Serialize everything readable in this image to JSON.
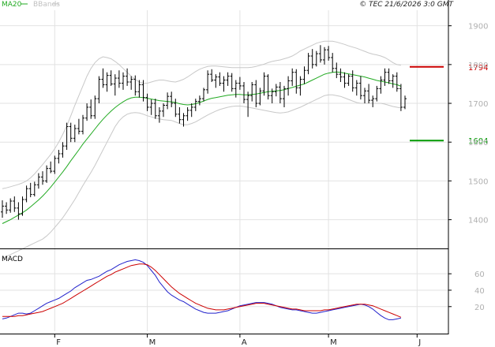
{
  "copyright": "© TEC 21/6/2026 3:0 GMT",
  "chart_data": [
    {
      "type": "ohlc",
      "legend": [
        {
          "name": "MA20",
          "color": "#22aa22"
        },
        {
          "name": "BBands",
          "color": "#c0c0c0"
        }
      ],
      "x_ticks": [
        {
          "label": "F",
          "bar": 13
        },
        {
          "label": "M",
          "bar": 36
        },
        {
          "label": "A",
          "bar": 59
        },
        {
          "label": "M",
          "bar": 81
        },
        {
          "label": "J",
          "bar": 103
        }
      ],
      "y_ticks": [
        1400,
        1500,
        1600,
        1700,
        1800,
        1900
      ],
      "ylim": [
        1330,
        1940
      ],
      "grid": true,
      "levels": [
        {
          "label": "1794",
          "value": 1794,
          "color": "#cc0000"
        },
        {
          "label": "1604",
          "value": 1604,
          "color": "#009900"
        }
      ],
      "bars": [
        [
          1420,
          1450,
          1405,
          1435
        ],
        [
          1435,
          1445,
          1415,
          1425
        ],
        [
          1425,
          1455,
          1418,
          1448
        ],
        [
          1448,
          1460,
          1420,
          1430
        ],
        [
          1430,
          1445,
          1400,
          1415
        ],
        [
          1415,
          1460,
          1410,
          1452
        ],
        [
          1452,
          1488,
          1445,
          1480
        ],
        [
          1480,
          1495,
          1458,
          1465
        ],
        [
          1465,
          1498,
          1460,
          1490
        ],
        [
          1490,
          1520,
          1480,
          1510
        ],
        [
          1510,
          1525,
          1490,
          1500
        ],
        [
          1500,
          1540,
          1495,
          1532
        ],
        [
          1532,
          1550,
          1520,
          1525
        ],
        [
          1525,
          1565,
          1518,
          1558
        ],
        [
          1558,
          1580,
          1545,
          1570
        ],
        [
          1570,
          1600,
          1560,
          1590
        ],
        [
          1590,
          1650,
          1580,
          1640
        ],
        [
          1640,
          1650,
          1600,
          1610
        ],
        [
          1610,
          1645,
          1600,
          1635
        ],
        [
          1635,
          1660,
          1620,
          1628
        ],
        [
          1628,
          1670,
          1620,
          1662
        ],
        [
          1662,
          1700,
          1655,
          1690
        ],
        [
          1690,
          1710,
          1660,
          1668
        ],
        [
          1668,
          1720,
          1660,
          1712
        ],
        [
          1712,
          1770,
          1700,
          1762
        ],
        [
          1762,
          1790,
          1740,
          1748
        ],
        [
          1748,
          1780,
          1730,
          1772
        ],
        [
          1772,
          1785,
          1745,
          1750
        ],
        [
          1750,
          1775,
          1720,
          1765
        ],
        [
          1765,
          1785,
          1740,
          1752
        ],
        [
          1752,
          1780,
          1735,
          1770
        ],
        [
          1770,
          1790,
          1745,
          1755
        ],
        [
          1755,
          1770,
          1735,
          1762
        ],
        [
          1762,
          1772,
          1720,
          1730
        ],
        [
          1730,
          1760,
          1715,
          1748
        ],
        [
          1748,
          1760,
          1705,
          1715
        ],
        [
          1715,
          1725,
          1680,
          1690
        ],
        [
          1690,
          1710,
          1670,
          1700
        ],
        [
          1700,
          1712,
          1660,
          1668
        ],
        [
          1668,
          1690,
          1650,
          1680
        ],
        [
          1680,
          1700,
          1665,
          1695
        ],
        [
          1695,
          1728,
          1685,
          1718
        ],
        [
          1718,
          1730,
          1690,
          1700
        ],
        [
          1700,
          1712,
          1665,
          1672
        ],
        [
          1672,
          1690,
          1648,
          1658
        ],
        [
          1658,
          1675,
          1640,
          1668
        ],
        [
          1668,
          1690,
          1655,
          1682
        ],
        [
          1682,
          1700,
          1665,
          1690
        ],
        [
          1690,
          1712,
          1680,
          1705
        ],
        [
          1705,
          1720,
          1695,
          1712
        ],
        [
          1712,
          1740,
          1705,
          1735
        ],
        [
          1735,
          1785,
          1725,
          1775
        ],
        [
          1775,
          1788,
          1755,
          1760
        ],
        [
          1760,
          1775,
          1740,
          1768
        ],
        [
          1768,
          1780,
          1745,
          1752
        ],
        [
          1752,
          1770,
          1730,
          1760
        ],
        [
          1760,
          1780,
          1745,
          1770
        ],
        [
          1770,
          1778,
          1730,
          1738
        ],
        [
          1738,
          1760,
          1715,
          1752
        ],
        [
          1752,
          1768,
          1735,
          1745
        ],
        [
          1745,
          1755,
          1700,
          1710
        ],
        [
          1710,
          1730,
          1665,
          1720
        ],
        [
          1720,
          1755,
          1705,
          1748
        ],
        [
          1748,
          1760,
          1690,
          1700
        ],
        [
          1700,
          1740,
          1695,
          1732
        ],
        [
          1732,
          1780,
          1720,
          1770
        ],
        [
          1770,
          1775,
          1710,
          1720
        ],
        [
          1720,
          1738,
          1700,
          1730
        ],
        [
          1730,
          1750,
          1718,
          1742
        ],
        [
          1742,
          1755,
          1700,
          1712
        ],
        [
          1712,
          1745,
          1690,
          1738
        ],
        [
          1738,
          1770,
          1720,
          1758
        ],
        [
          1758,
          1790,
          1745,
          1780
        ],
        [
          1780,
          1788,
          1725,
          1740
        ],
        [
          1740,
          1770,
          1720,
          1762
        ],
        [
          1762,
          1795,
          1750,
          1785
        ],
        [
          1785,
          1830,
          1775,
          1822
        ],
        [
          1822,
          1840,
          1790,
          1800
        ],
        [
          1800,
          1835,
          1795,
          1828
        ],
        [
          1828,
          1850,
          1805,
          1812
        ],
        [
          1812,
          1845,
          1800,
          1838
        ],
        [
          1838,
          1848,
          1810,
          1818
        ],
        [
          1818,
          1830,
          1780,
          1790
        ],
        [
          1790,
          1805,
          1765,
          1775
        ],
        [
          1775,
          1790,
          1755,
          1768
        ],
        [
          1768,
          1780,
          1740,
          1752
        ],
        [
          1752,
          1775,
          1745,
          1770
        ],
        [
          1770,
          1785,
          1730,
          1740
        ],
        [
          1740,
          1760,
          1720,
          1752
        ],
        [
          1752,
          1770,
          1710,
          1720
        ],
        [
          1720,
          1740,
          1700,
          1732
        ],
        [
          1732,
          1750,
          1700,
          1708
        ],
        [
          1708,
          1720,
          1690,
          1712
        ],
        [
          1712,
          1745,
          1705,
          1738
        ],
        [
          1738,
          1770,
          1725,
          1760
        ],
        [
          1760,
          1790,
          1745,
          1780
        ],
        [
          1780,
          1790,
          1750,
          1758
        ],
        [
          1758,
          1775,
          1740,
          1770
        ],
        [
          1770,
          1780,
          1730,
          1738
        ],
        [
          1738,
          1750,
          1680,
          1690
        ],
        [
          1690,
          1720,
          1685,
          1712
        ]
      ],
      "ma20": [
        1390,
        1395,
        1400,
        1406,
        1412,
        1418,
        1425,
        1433,
        1442,
        1451,
        1461,
        1472,
        1484,
        1497,
        1510,
        1523,
        1537,
        1552,
        1566,
        1580,
        1595,
        1608,
        1621,
        1634,
        1647,
        1659,
        1670,
        1680,
        1689,
        1697,
        1704,
        1710,
        1714,
        1716,
        1716,
        1715,
        1713,
        1711,
        1709,
        1707,
        1706,
        1705,
        1704,
        1702,
        1699,
        1697,
        1696,
        1697,
        1699,
        1702,
        1706,
        1710,
        1713,
        1715,
        1717,
        1719,
        1721,
        1722,
        1723,
        1723,
        1722,
        1722,
        1723,
        1724,
        1726,
        1728,
        1730,
        1731,
        1732,
        1733,
        1735,
        1738,
        1741,
        1744,
        1747,
        1750,
        1755,
        1760,
        1765,
        1770,
        1775,
        1778,
        1780,
        1781,
        1780,
        1778,
        1776,
        1774,
        1772,
        1770,
        1768,
        1765,
        1762,
        1759,
        1757,
        1755,
        1753,
        1750,
        1748,
        1744
      ],
      "bb_upper": [
        1480,
        1482,
        1485,
        1488,
        1491,
        1495,
        1500,
        1508,
        1518,
        1530,
        1542,
        1555,
        1568,
        1583,
        1600,
        1620,
        1642,
        1668,
        1695,
        1720,
        1745,
        1770,
        1790,
        1805,
        1815,
        1820,
        1818,
        1815,
        1808,
        1800,
        1790,
        1780,
        1770,
        1762,
        1755,
        1752,
        1752,
        1755,
        1758,
        1760,
        1760,
        1758,
        1756,
        1755,
        1758,
        1762,
        1768,
        1775,
        1782,
        1788,
        1792,
        1795,
        1796,
        1796,
        1795,
        1794,
        1793,
        1792,
        1792,
        1792,
        1792,
        1792,
        1793,
        1795,
        1798,
        1801,
        1805,
        1808,
        1810,
        1812,
        1815,
        1818,
        1822,
        1828,
        1835,
        1840,
        1845,
        1850,
        1855,
        1858,
        1860,
        1860,
        1860,
        1858,
        1855,
        1852,
        1848,
        1845,
        1842,
        1838,
        1834,
        1830,
        1827,
        1825,
        1822,
        1818,
        1812,
        1805,
        1800,
        1798
      ],
      "bb_lower": [
        1300,
        1305,
        1310,
        1315,
        1320,
        1325,
        1330,
        1335,
        1340,
        1345,
        1350,
        1358,
        1368,
        1380,
        1392,
        1405,
        1420,
        1436,
        1452,
        1470,
        1488,
        1505,
        1522,
        1540,
        1560,
        1580,
        1600,
        1620,
        1640,
        1655,
        1665,
        1672,
        1675,
        1676,
        1675,
        1672,
        1668,
        1665,
        1662,
        1660,
        1658,
        1657,
        1656,
        1652,
        1648,
        1645,
        1645,
        1648,
        1652,
        1658,
        1664,
        1670,
        1675,
        1680,
        1684,
        1687,
        1690,
        1692,
        1693,
        1693,
        1692,
        1690,
        1688,
        1686,
        1684,
        1682,
        1680,
        1678,
        1676,
        1675,
        1676,
        1678,
        1682,
        1686,
        1690,
        1695,
        1700,
        1705,
        1710,
        1715,
        1720,
        1722,
        1722,
        1720,
        1718,
        1714,
        1710,
        1706,
        1702,
        1700,
        1700,
        1700,
        1700,
        1700,
        1700,
        1698,
        1695,
        1692,
        1690,
        1688
      ]
    },
    {
      "type": "line",
      "legend": [
        {
          "name": "MACD",
          "color": "#000000"
        }
      ],
      "y_ticks": [
        {
          "label": "60",
          "value": 60
        },
        {
          "label": "40",
          "value": 40
        },
        {
          "label": "20",
          "value": 20
        }
      ],
      "ylim": [
        -10,
        88
      ],
      "grid": true,
      "series": [
        {
          "color": "#2222cc",
          "values": [
            5,
            6,
            8,
            10,
            12,
            12,
            11,
            12,
            15,
            18,
            21,
            24,
            26,
            28,
            30,
            33,
            36,
            39,
            43,
            46,
            49,
            52,
            53,
            55,
            57,
            60,
            63,
            65,
            68,
            71,
            73,
            75,
            76,
            77,
            76,
            74,
            70,
            64,
            58,
            50,
            44,
            38,
            34,
            31,
            28,
            26,
            23,
            20,
            17,
            15,
            13,
            12,
            12,
            12,
            13,
            14,
            15,
            17,
            19,
            21,
            22,
            23,
            24,
            25,
            25,
            25,
            24,
            23,
            21,
            19,
            18,
            17,
            16,
            16,
            15,
            14,
            13,
            12,
            12,
            13,
            14,
            15,
            16,
            17,
            18,
            19,
            20,
            21,
            22,
            23,
            22,
            20,
            17,
            13,
            9,
            6,
            4,
            4,
            5,
            6
          ]
        },
        {
          "color": "#cc0000",
          "values": [
            8,
            8,
            8,
            8,
            9,
            9,
            10,
            11,
            12,
            13,
            14,
            16,
            18,
            20,
            22,
            24,
            27,
            30,
            33,
            36,
            39,
            42,
            45,
            48,
            51,
            54,
            57,
            59,
            62,
            64,
            66,
            68,
            70,
            71,
            72,
            72,
            71,
            68,
            64,
            59,
            54,
            49,
            44,
            40,
            36,
            33,
            30,
            27,
            24,
            22,
            20,
            18,
            17,
            16,
            16,
            16,
            17,
            18,
            19,
            20,
            21,
            22,
            23,
            24,
            24,
            24,
            23,
            22,
            21,
            20,
            19,
            18,
            17,
            17,
            16,
            15,
            15,
            15,
            15,
            15,
            16,
            16,
            17,
            18,
            19,
            20,
            21,
            22,
            23,
            23,
            23,
            22,
            21,
            19,
            17,
            15,
            13,
            11,
            9,
            7
          ]
        }
      ]
    }
  ]
}
